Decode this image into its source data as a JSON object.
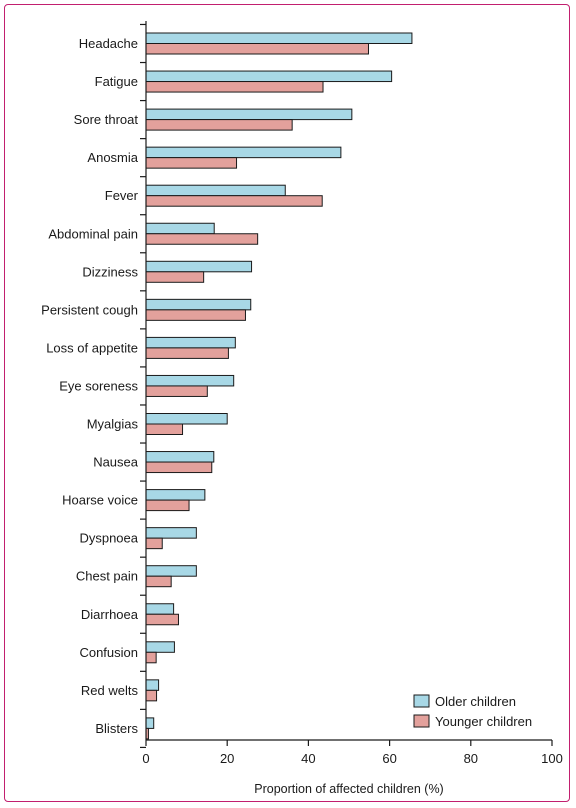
{
  "chart_data": {
    "type": "bar",
    "orientation": "horizontal",
    "categories": [
      "Headache",
      "Fatigue",
      "Sore throat",
      "Anosmia",
      "Fever",
      "Abdominal pain",
      "Dizziness",
      "Persistent cough",
      "Loss of appetite",
      "Eye soreness",
      "Myalgias",
      "Nausea",
      "Hoarse voice",
      "Dyspnoea",
      "Chest pain",
      "Diarrhoea",
      "Confusion",
      "Red welts",
      "Blisters"
    ],
    "series": [
      {
        "name": "Older children",
        "color": "#a8d8e6",
        "values": [
          65.5,
          60.5,
          50.7,
          48,
          34.3,
          16.8,
          26,
          25.8,
          22,
          21.6,
          20,
          16.7,
          14.5,
          12.4,
          12.4,
          6.8,
          7,
          3.1,
          1.9
        ]
      },
      {
        "name": "Younger children",
        "color": "#e3a19c",
        "values": [
          54.8,
          43.6,
          36,
          22.3,
          43.4,
          27.5,
          14.2,
          24.5,
          20.3,
          15.1,
          9,
          16.2,
          10.6,
          4,
          6.2,
          8,
          2.5,
          2.6,
          0.6
        ]
      }
    ],
    "xlabel": "Proportion of affected children (%)",
    "xlim": [
      0,
      100
    ],
    "xticks": [
      0,
      20,
      40,
      60,
      80,
      100
    ],
    "legend_position": "bottom-right",
    "grid": false
  }
}
